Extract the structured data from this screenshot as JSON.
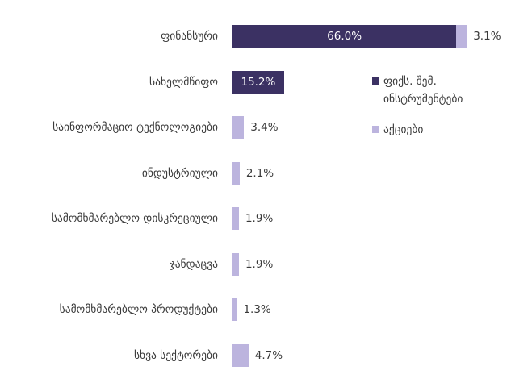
{
  "chart_data": {
    "type": "bar",
    "orientation": "horizontal",
    "stacked": true,
    "categories": [
      "ფინანსური",
      "სახელმწიფო",
      "საინფორმაციო ტექნოლოგიები",
      "ინდუსტრიული",
      "სამომხმარებლო დისკრეციული",
      "ჯანდაცვა",
      "სამომხმარებლო პროდუქტები",
      "სხვა სექტორები"
    ],
    "series": [
      {
        "name": "ფიქს. შემ. ინსტრუმენტები",
        "color": "#3b3163",
        "values": [
          66.0,
          15.2,
          null,
          null,
          null,
          null,
          null,
          null
        ],
        "value_labels": [
          "66.0%",
          "15.2%",
          null,
          null,
          null,
          null,
          null,
          null
        ]
      },
      {
        "name": "აქციები",
        "color": "#bcb4de",
        "values": [
          3.1,
          null,
          3.4,
          2.1,
          1.9,
          1.9,
          1.3,
          4.7
        ],
        "value_labels": [
          "3.1%",
          null,
          "3.4%",
          "2.1%",
          "1.9%",
          "1.9%",
          "1.3%",
          "4.7%"
        ]
      }
    ]
  }
}
